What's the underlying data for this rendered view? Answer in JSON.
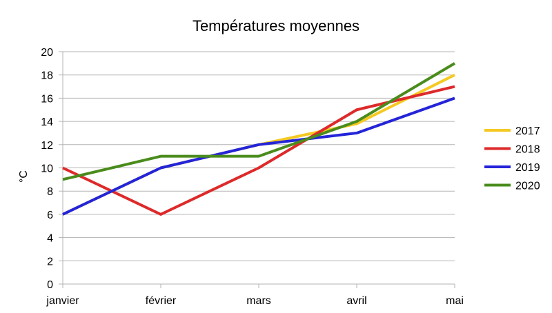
{
  "chart_data": {
    "type": "line",
    "title": "Températures moyennes",
    "xlabel": "",
    "ylabel": "°C",
    "categories": [
      "janvier",
      "février",
      "mars",
      "avril",
      "mai"
    ],
    "ylim": [
      0,
      20
    ],
    "yticks": [
      0,
      2,
      4,
      6,
      8,
      10,
      12,
      14,
      16,
      18,
      20
    ],
    "grid": true,
    "legend_position": "right",
    "series": [
      {
        "name": "2017",
        "color": "#f5c923",
        "values": [
          6,
          10,
          12,
          13.8,
          18
        ]
      },
      {
        "name": "2018",
        "color": "#dd2a2a",
        "values": [
          10,
          6,
          10,
          15,
          17
        ]
      },
      {
        "name": "2019",
        "color": "#2424d8",
        "values": [
          6,
          10,
          12,
          13,
          16
        ]
      },
      {
        "name": "2020",
        "color": "#4a8c1c",
        "values": [
          9,
          11,
          11,
          14,
          19
        ]
      }
    ]
  }
}
